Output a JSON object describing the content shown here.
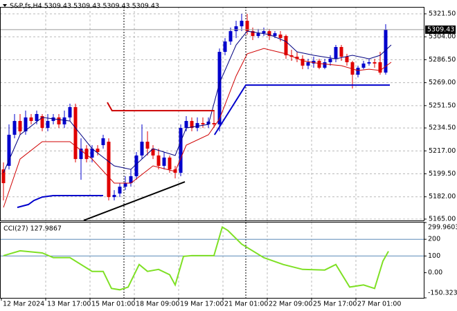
{
  "chart_data": [
    {
      "type": "candlestick",
      "title": "S&P,fs,H4  5309.43 5309.43 5309.43 5309.43",
      "categories": [
        "12 Mar 2024",
        null,
        null,
        null,
        null,
        null,
        null,
        null,
        "13 Mar 17:00",
        null,
        null,
        null,
        null,
        null,
        null,
        null,
        "15 Mar 01:00",
        null,
        null,
        null,
        null,
        null,
        null,
        null,
        "18 Mar 09:00",
        null,
        null,
        null,
        null,
        null,
        null,
        null,
        "19 Mar 17:00",
        null,
        null,
        null,
        null,
        null,
        null,
        null,
        "21 Mar 01:00",
        null,
        null,
        null,
        null,
        null,
        null,
        null,
        "22 Mar 09:00",
        null,
        null,
        null,
        null,
        null,
        null,
        null,
        "25 Mar 17:00",
        null,
        null,
        null,
        null,
        null,
        null,
        null,
        "27 Mar 01:00",
        null,
        null,
        null,
        null,
        null
      ],
      "candles": [
        [
          5202.9,
          5208.2,
          5179.2,
          5192.4
        ],
        [
          5205.6,
          5237.2,
          5202.9,
          5229.3
        ],
        [
          5229.3,
          5245.1,
          5226.6,
          5239.8
        ],
        [
          5239.8,
          5245.1,
          5229.3,
          5231.9
        ],
        [
          5231.9,
          5247.7,
          5229.3,
          5242.5
        ],
        [
          5242.5,
          5245.1,
          5237.2,
          5239.8
        ],
        [
          5239.8,
          5247.7,
          5237.2,
          5245.1
        ],
        [
          5243.5,
          5245.1,
          5231.9,
          5234.5
        ],
        [
          5234.5,
          5245.1,
          5231.9,
          5239.8
        ],
        [
          5239.8,
          5245.1,
          5237.2,
          5242.5
        ],
        [
          5242.5,
          5245.1,
          5234.5,
          5237.2
        ],
        [
          5237.2,
          5247.7,
          5234.5,
          5242.5
        ],
        [
          5242.5,
          5253.0,
          5239.8,
          5250.4
        ],
        [
          5250.4,
          5253.0,
          5208.2,
          5210.8
        ],
        [
          5210.8,
          5226.6,
          5195.0,
          5218.7
        ],
        [
          5218.7,
          5221.4,
          5208.2,
          5210.8
        ],
        [
          5211.9,
          5221.4,
          5208.2,
          5218.7
        ],
        [
          5218.7,
          5221.4,
          5213.5,
          5216.1
        ],
        [
          5221.4,
          5229.3,
          5218.7,
          5226.6
        ],
        [
          5224.0,
          5226.6,
          5179.2,
          5181.8
        ],
        [
          5181.8,
          5187.1,
          5179.2,
          5183.4
        ],
        [
          5184.5,
          5192.4,
          5181.8,
          5189.7
        ],
        [
          5189.7,
          5197.7,
          5187.1,
          5192.4
        ],
        [
          5192.4,
          5202.9,
          5189.7,
          5197.7
        ],
        [
          5197.7,
          5216.1,
          5195.0,
          5213.5
        ],
        [
          5213.5,
          5237.2,
          5210.8,
          5224.0
        ],
        [
          5224.0,
          5231.9,
          5213.5,
          5218.7
        ],
        [
          5218.7,
          5221.4,
          5210.8,
          5213.5
        ],
        [
          5213.5,
          5218.7,
          5202.9,
          5205.6
        ],
        [
          5205.6,
          5216.1,
          5202.9,
          5211.9
        ],
        [
          5211.9,
          5213.5,
          5200.3,
          5202.9
        ],
        [
          5202.9,
          5205.6,
          5196.0,
          5200.3
        ],
        [
          5200.3,
          5237.2,
          5197.7,
          5234.5
        ],
        [
          5234.5,
          5243.5,
          5231.9,
          5239.8
        ],
        [
          5239.8,
          5242.5,
          5231.9,
          5234.5
        ],
        [
          5234.5,
          5242.5,
          5231.9,
          5238.2
        ],
        [
          5238.2,
          5242.5,
          5234.5,
          5237.2
        ],
        [
          5237.2,
          5242.5,
          5234.5,
          5239.3
        ],
        [
          5238.2,
          5247.7,
          5234.5,
          5237.2
        ],
        [
          5237.2,
          5295.1,
          5231.9,
          5292.5
        ],
        [
          5292.5,
          5303.0,
          5289.9,
          5300.4
        ],
        [
          5300.4,
          5311.0,
          5297.8,
          5308.3
        ],
        [
          5308.3,
          5316.2,
          5303.0,
          5312.0
        ],
        [
          5312.0,
          5321.5,
          5308.3,
          5316.2
        ],
        [
          5316.2,
          5321.5,
          5305.6,
          5308.3
        ],
        [
          5308.3,
          5311.0,
          5301.5,
          5304.6
        ],
        [
          5304.6,
          5310.0,
          5303.0,
          5306.7
        ],
        [
          5306.7,
          5311.0,
          5304.6,
          5308.3
        ],
        [
          5308.3,
          5310.0,
          5301.5,
          5304.6
        ],
        [
          5304.6,
          5308.3,
          5303.0,
          5306.7
        ],
        [
          5305.7,
          5308.3,
          5300.4,
          5303.0
        ],
        [
          5304.6,
          5305.7,
          5287.2,
          5289.9
        ],
        [
          5289.9,
          5294.1,
          5285.7,
          5288.8
        ],
        [
          5288.8,
          5292.5,
          5284.6,
          5287.2
        ],
        [
          5287.2,
          5289.9,
          5279.3,
          5282.0
        ],
        [
          5282.0,
          5287.2,
          5279.3,
          5284.6
        ],
        [
          5283.6,
          5288.8,
          5280.4,
          5285.7
        ],
        [
          5285.7,
          5287.2,
          5279.3,
          5280.4
        ],
        [
          5280.4,
          5287.2,
          5279.3,
          5284.6
        ],
        [
          5284.6,
          5289.9,
          5282.0,
          5287.2
        ],
        [
          5287.2,
          5297.8,
          5284.6,
          5296.2
        ],
        [
          5296.2,
          5297.8,
          5285.7,
          5288.8
        ],
        [
          5288.8,
          5291.0,
          5282.0,
          5284.6
        ],
        [
          5284.6,
          5285.7,
          5264.6,
          5275.1
        ],
        [
          5275.1,
          5282.0,
          5273.0,
          5280.4
        ],
        [
          5280.4,
          5285.7,
          5279.3,
          5283.6
        ],
        [
          5283.6,
          5287.2,
          5282.0,
          5284.6
        ],
        [
          5284.6,
          5287.2,
          5280.4,
          5283.6
        ],
        [
          5284.6,
          5292.5,
          5275.1,
          5276.7
        ],
        [
          5276.7,
          5313.6,
          5275.1,
          5309.43
        ]
      ],
      "up_color": "#0000cc",
      "down_color": "#e00000",
      "lines": [
        {
          "color": "#000080",
          "width": 1,
          "x": [
            0,
            3,
            7,
            12,
            16,
            20,
            23,
            27,
            31,
            33,
            37,
            39,
            42,
            44,
            48,
            51,
            53,
            56,
            60,
            63,
            66,
            68,
            70
          ],
          "values": [
            5200.3,
            5229.3,
            5242.5,
            5239.8,
            5218.7,
            5205.6,
            5202.9,
            5218.7,
            5213.5,
            5234.5,
            5237.2,
            5268.8,
            5297.8,
            5308.3,
            5305.7,
            5300.4,
            5292.5,
            5289.9,
            5287.2,
            5289.9,
            5287.2,
            5289.9,
            5297.8
          ]
        },
        {
          "color": "#d00000",
          "width": 1,
          "x": [
            0,
            3,
            7,
            12,
            16,
            20,
            23,
            27,
            31,
            33,
            37,
            39,
            42,
            44,
            47,
            51,
            54,
            57,
            61,
            64,
            66,
            68,
            70
          ],
          "values": [
            5173.9,
            5210.8,
            5224.0,
            5224.0,
            5210.8,
            5192.4,
            5192.4,
            5205.6,
            5201.3,
            5221.4,
            5229.3,
            5241.4,
            5274.1,
            5291.0,
            5295.1,
            5291.0,
            5285.7,
            5283.6,
            5282.0,
            5278.3,
            5279.3,
            5278.3,
            5284.6
          ]
        },
        {
          "color": "#0000cc",
          "width": 2,
          "x": [
            2.5,
            4.5,
            5.5,
            7,
            9,
            18
          ],
          "values": [
            5173.9,
            5176.1,
            5179.2,
            5181.8,
            5182.9,
            5182.9
          ]
        },
        {
          "color": "#0000cc",
          "width": 2,
          "x": [
            38.1,
            43.75,
            69.75
          ],
          "values": [
            5229.3,
            5267.2,
            5267.2
          ]
        },
        {
          "color": "#cc0000",
          "width": 2,
          "x": [
            18.75,
            19.6,
            38.1
          ],
          "values": [
            5254.0,
            5247.7,
            5247.7
          ]
        },
        {
          "color": "#000000",
          "width": 2,
          "x": [
            14.5,
            32.75
          ],
          "values": [
            5164.0,
            5193.4
          ]
        }
      ],
      "last_price": 5309.43,
      "ylim": [
        5163.95,
        5326.77
      ],
      "yticks": [
        {
          "value": 5321.5,
          "label": "5321.50"
        },
        {
          "value": 5304,
          "label": "5304.00"
        },
        {
          "value": 5286.5,
          "label": "5286.50"
        },
        {
          "value": 5269,
          "label": "5269.00"
        },
        {
          "value": 5251.5,
          "label": "5251.50"
        },
        {
          "value": 5234.5,
          "label": "5234.50"
        },
        {
          "value": 5217,
          "label": "5217.00"
        },
        {
          "value": 5199.5,
          "label": "5199.50"
        },
        {
          "value": 5182,
          "label": "5182.00"
        },
        {
          "value": 5165,
          "label": "5165.00"
        }
      ],
      "grid": true
    },
    {
      "type": "line",
      "title": "CCI(27) 127.9867",
      "series": [
        {
          "color": "#7ee024",
          "x": [
            0,
            3,
            7,
            9,
            12,
            16,
            18,
            19.5,
            21,
            22.5,
            24.5,
            26,
            28,
            30,
            31,
            32.5,
            34,
            38,
            39.5,
            40.5,
            43,
            47,
            50.5,
            54,
            58,
            60,
            62.5,
            65,
            67,
            68.5,
            69.5
          ],
          "values": [
            102,
            131,
            118,
            90,
            90,
            8,
            8,
            -94,
            -102,
            -86,
            49,
            8,
            20,
            -12,
            -73,
            98,
            102,
            102,
            273,
            253,
            171,
            90,
            49,
            20,
            16,
            49,
            -86,
            -73,
            -94,
            69,
            127.9867
          ]
        }
      ],
      "ylim": [
        -150.3238,
        299.9603
      ],
      "yticks": [
        299.9603,
        200,
        100,
        {
          "value": 0,
          "label": "0.00"
        },
        -150.3238
      ],
      "levels": [
        200,
        100
      ],
      "level_color": "#5a8ab8"
    }
  ]
}
